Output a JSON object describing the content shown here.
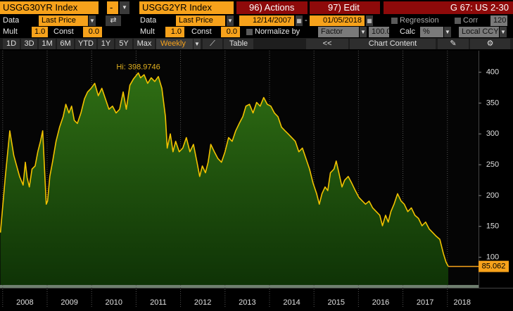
{
  "header": {
    "security_1": "USGG30YR Index",
    "security_1_option": "-",
    "security_2": "USGG2YR Index",
    "actions": "96) Actions",
    "edit": "97) Edit",
    "page": "G 67: US 2-30"
  },
  "settings": {
    "data_label_1": "Data",
    "data_1": "Last Price",
    "data_label_2": "Data",
    "data_2": "Last Price",
    "start_date": "12/14/2007",
    "date_separator": "-",
    "end_date": "01/05/2018",
    "regression": "Regression",
    "corr": "Corr",
    "corr_value": "120",
    "mult_label_1": "Mult",
    "mult_1": "1.0",
    "const_label_1": "Const",
    "const_1": "0.0",
    "mult_label_2": "Mult",
    "mult_2": "1.0",
    "const_label_2": "Const",
    "const_2": "0.0",
    "normalize": "Normalize by",
    "normalize_mode": "Factor",
    "normalize_value": "100.0",
    "calc": "Calc",
    "calc_value": "%",
    "currency": "Local CCY"
  },
  "toolbar": {
    "ranges": [
      "1D",
      "3D",
      "1M",
      "6M",
      "YTD",
      "1Y",
      "5Y",
      "Max"
    ],
    "frequency": "Weekly",
    "table": "Table",
    "back": "<<",
    "chart_content": "Chart Content"
  },
  "chart_data": {
    "type": "area",
    "annotation": "Hi: 398.9746",
    "color": "#f2c200",
    "fill": "#2e6b14",
    "grid": true,
    "x": [
      2007.95,
      2008.06,
      2008.16,
      2008.25,
      2008.38,
      2008.46,
      2008.51,
      2008.55,
      2008.6,
      2008.66,
      2008.73,
      2008.79,
      2008.85,
      2008.9,
      2008.93,
      2008.98,
      2009.01,
      2009.06,
      2009.12,
      2009.2,
      2009.28,
      2009.36,
      2009.42,
      2009.49,
      2009.55,
      2009.61,
      2009.68,
      2009.76,
      2009.84,
      2009.91,
      2009.99,
      2010.07,
      2010.15,
      2010.23,
      2010.31,
      2010.39,
      2010.47,
      2010.55,
      2010.63,
      2010.71,
      2010.78,
      2010.86,
      2010.94,
      2011.05,
      2011.1,
      2011.18,
      2011.26,
      2011.34,
      2011.42,
      2011.5,
      2011.58,
      2011.66,
      2011.7,
      2011.77,
      2011.83,
      2011.89,
      2011.97,
      2012.05,
      2012.13,
      2012.21,
      2012.29,
      2012.37,
      2012.43,
      2012.49,
      2012.56,
      2012.62,
      2012.68,
      2012.76,
      2012.84,
      2012.92,
      2013.0,
      2013.08,
      2013.16,
      2013.24,
      2013.32,
      2013.4,
      2013.47,
      2013.55,
      2013.63,
      2013.71,
      2013.79,
      2013.87,
      2013.95,
      2014.03,
      2014.11,
      2014.19,
      2014.27,
      2014.35,
      2014.42,
      2014.5,
      2014.58,
      2014.66,
      2014.74,
      2014.82,
      2014.9,
      2014.98,
      2015.06,
      2015.12,
      2015.18,
      2015.25,
      2015.31,
      2015.37,
      2015.45,
      2015.5,
      2015.56,
      2015.63,
      2015.69,
      2015.77,
      2015.85,
      2015.93,
      2016.01,
      2016.09,
      2016.16,
      2016.24,
      2016.32,
      2016.4,
      2016.48,
      2016.54,
      2016.61,
      2016.67,
      2016.73,
      2016.8,
      2016.88,
      2016.96,
      2017.03,
      2017.11,
      2017.19,
      2017.27,
      2017.35,
      2017.43,
      2017.51,
      2017.59,
      2017.67,
      2017.75,
      2017.83,
      2017.91,
      2017.97,
      2018.02
    ],
    "values": [
      140,
      231,
      305,
      265,
      231,
      217,
      254,
      229,
      214,
      243,
      248,
      271,
      288,
      305,
      260,
      186,
      191,
      231,
      254,
      288,
      311,
      328,
      348,
      334,
      345,
      322,
      317,
      334,
      357,
      368,
      374,
      382,
      362,
      374,
      357,
      340,
      345,
      334,
      340,
      368,
      340,
      379,
      389,
      398.9746,
      391,
      396,
      382,
      391,
      385,
      393,
      374,
      328,
      277,
      300,
      271,
      288,
      271,
      277,
      294,
      271,
      283,
      254,
      231,
      248,
      237,
      254,
      283,
      271,
      260,
      254,
      271,
      294,
      288,
      305,
      317,
      328,
      345,
      348,
      334,
      351,
      345,
      359,
      348,
      345,
      334,
      328,
      311,
      305,
      300,
      294,
      288,
      271,
      277,
      260,
      243,
      220,
      203,
      186,
      203,
      214,
      208,
      237,
      243,
      256,
      237,
      214,
      225,
      231,
      220,
      208,
      197,
      191,
      186,
      191,
      180,
      174,
      168,
      151,
      168,
      157,
      174,
      186,
      203,
      191,
      186,
      174,
      180,
      168,
      163,
      151,
      157,
      146,
      140,
      134,
      129,
      106,
      92,
      85.062
    ],
    "xlim": [
      2007.94,
      2018.7
    ],
    "xticks": [
      2008,
      2009,
      2010,
      2011,
      2012,
      2013,
      2014,
      2015,
      2016,
      2017,
      2018
    ],
    "ylim": [
      55,
      435
    ],
    "yticks": [
      100,
      150,
      200,
      250,
      300,
      350,
      400
    ]
  }
}
